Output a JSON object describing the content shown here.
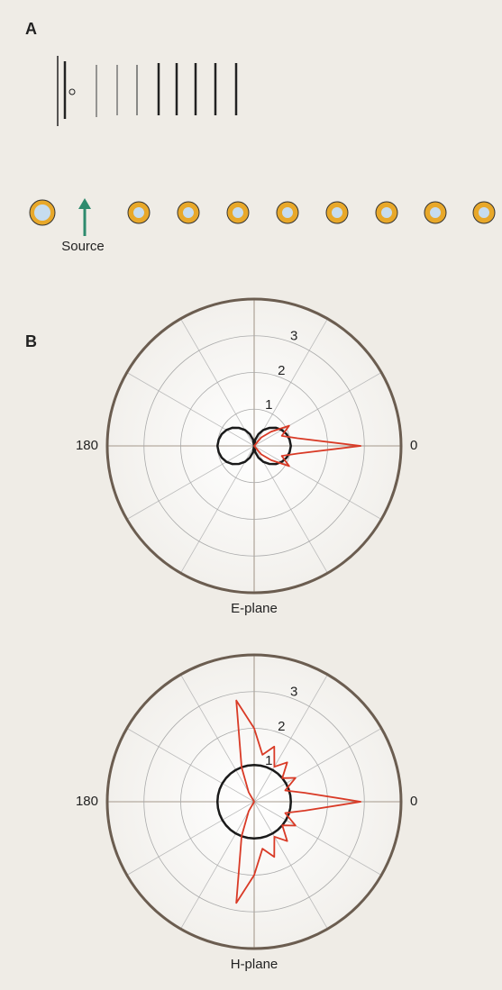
{
  "panel_a": {
    "label": "A",
    "source_label": "Source"
  },
  "panel_b": {
    "label": "B"
  },
  "chart_data": [
    {
      "type": "polar",
      "xlabel": "E-plane",
      "rlim": [
        0,
        4
      ],
      "rticks": [
        1,
        2,
        3
      ],
      "thetaticks": [
        0,
        180
      ],
      "theta": [
        0,
        10,
        20,
        30,
        40,
        50,
        60,
        70,
        80,
        90,
        100,
        110,
        120,
        130,
        140,
        150,
        160,
        170,
        180,
        190,
        200,
        210,
        220,
        230,
        240,
        250,
        260,
        270,
        280,
        290,
        300,
        310,
        320,
        330,
        340,
        350
      ],
      "series": [
        {
          "color": "#1a1a1a",
          "values": [
            1,
            0.98,
            0.94,
            0.87,
            0.77,
            0.64,
            0.5,
            0.34,
            0.17,
            0,
            0.17,
            0.34,
            0.5,
            0.64,
            0.77,
            0.87,
            0.94,
            0.98,
            1,
            0.98,
            0.94,
            0.87,
            0.77,
            0.64,
            0.5,
            0.34,
            0.17,
            0,
            0.17,
            0.34,
            0.5,
            0.64,
            0.77,
            0.87,
            0.94,
            0.98
          ]
        },
        {
          "color": "#d93a26",
          "values": [
            2.9,
            1.2,
            0.8,
            1.1,
            0.6,
            0.3,
            0,
            0,
            0,
            0,
            0,
            0,
            0,
            0,
            0,
            0,
            0,
            0,
            0,
            0,
            0,
            0,
            0,
            0,
            0,
            0,
            0,
            0,
            0,
            0,
            0,
            0.3,
            0.6,
            1.1,
            0.8,
            1.2
          ]
        }
      ]
    },
    {
      "type": "polar",
      "xlabel": "H-plane",
      "rlim": [
        0,
        4
      ],
      "rticks": [
        1,
        2,
        3
      ],
      "thetaticks": [
        0,
        180
      ],
      "theta": [
        0,
        10,
        20,
        30,
        40,
        50,
        60,
        70,
        80,
        90,
        100,
        110,
        120,
        130,
        140,
        150,
        160,
        170,
        180,
        190,
        200,
        210,
        220,
        230,
        240,
        250,
        260,
        270,
        280,
        290,
        300,
        310,
        320,
        330,
        340,
        350
      ],
      "series": [
        {
          "color": "#1a1a1a",
          "values": [
            1,
            1,
            1,
            1,
            1,
            1,
            1,
            1,
            1,
            1,
            1,
            1,
            1,
            1,
            1,
            1,
            1,
            1,
            1,
            1,
            1,
            1,
            1,
            1,
            1,
            1,
            1,
            1,
            1,
            1,
            1,
            1,
            1,
            1,
            1,
            1
          ]
        },
        {
          "color": "#d93a26",
          "values": [
            2.9,
            1.4,
            0.9,
            1.3,
            1.0,
            1.4,
            1.1,
            1.6,
            1.3,
            2.0,
            2.8,
            1.0,
            0.3,
            0,
            0,
            0,
            0,
            0,
            0,
            0,
            0,
            0,
            0,
            0,
            0.3,
            1.0,
            2.8,
            2.0,
            1.3,
            1.6,
            1.1,
            1.4,
            1.0,
            1.3,
            0.9,
            1.4
          ]
        }
      ]
    }
  ]
}
